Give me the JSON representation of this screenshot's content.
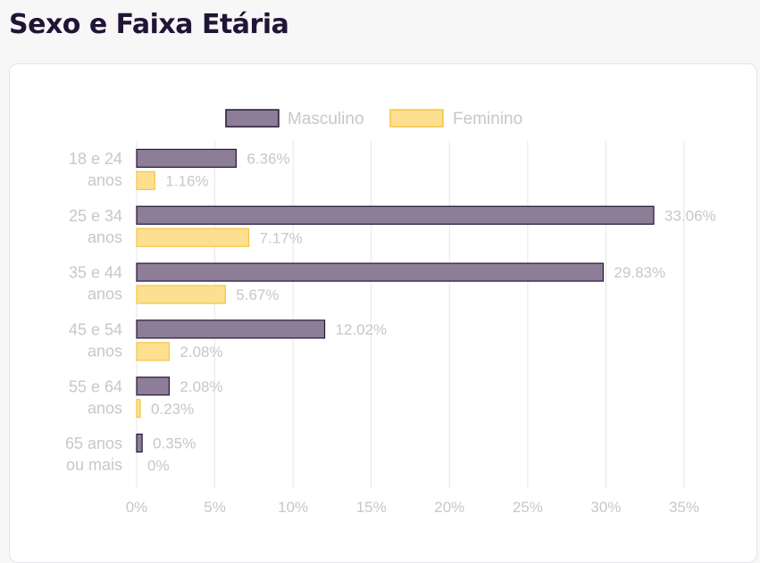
{
  "page": {
    "title": "Sexo e Faixa Etária"
  },
  "chart_data": {
    "type": "bar",
    "orientation": "horizontal",
    "categories": [
      [
        "18 e 24",
        "anos"
      ],
      [
        "25 e 34",
        "anos"
      ],
      [
        "35 e 44",
        "anos"
      ],
      [
        "45 e 54",
        "anos"
      ],
      [
        "55 e 64",
        "anos"
      ],
      [
        "65 anos",
        "ou mais"
      ]
    ],
    "series": [
      {
        "name": "Masculino",
        "values": [
          6.36,
          33.06,
          29.83,
          12.02,
          2.08,
          0.35
        ],
        "fill": "#8e7d96",
        "stroke": "#241638"
      },
      {
        "name": "Feminino",
        "values": [
          1.16,
          7.17,
          5.67,
          2.08,
          0.23,
          0
        ],
        "fill": "#fde08f",
        "stroke": "#f5c542"
      }
    ],
    "data_labels": [
      [
        "6.36%",
        "33.06%",
        "29.83%",
        "12.02%",
        "2.08%",
        "0.35%"
      ],
      [
        "1.16%",
        "7.17%",
        "5.67%",
        "2.08%",
        "0.23%",
        "0%"
      ]
    ],
    "x_ticks": [
      "0%",
      "5%",
      "10%",
      "15%",
      "20%",
      "25%",
      "30%",
      "35%"
    ],
    "xlim": [
      0,
      35
    ],
    "legend_position": "top-center",
    "grid": true,
    "colors": {
      "grid": "#e6e6e9",
      "label": "#c7c7cc",
      "title": "#1f1535"
    }
  }
}
